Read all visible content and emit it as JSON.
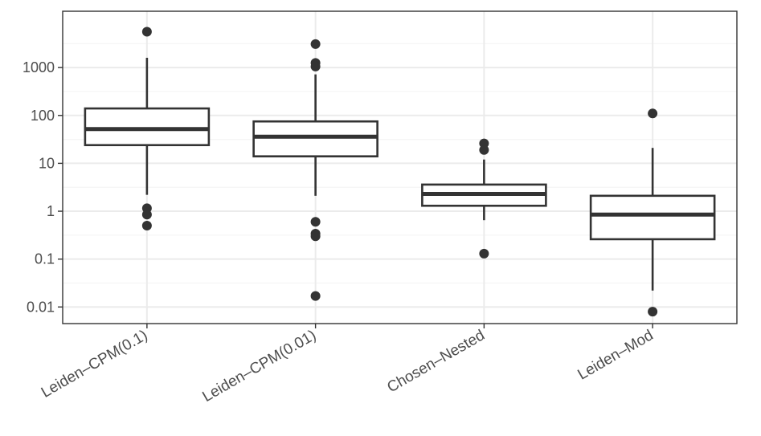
{
  "chart_data": {
    "type": "box",
    "y_scale": "log10",
    "ylim": [
      0.0045,
      15000
    ],
    "y_ticks": [
      {
        "value": 0.01,
        "label": "0.01"
      },
      {
        "value": 0.1,
        "label": "0.1"
      },
      {
        "value": 1,
        "label": "1"
      },
      {
        "value": 10,
        "label": "10"
      },
      {
        "value": 100,
        "label": "100"
      },
      {
        "value": 1000,
        "label": "1000"
      }
    ],
    "grid": true,
    "x_label_rotation_deg": 30,
    "categories": [
      "Leiden–CPM(0.1)",
      "Leiden–CPM(0.01)",
      "Chosen–Nested",
      "Leiden–Mod"
    ],
    "boxes": [
      {
        "category": "Leiden–CPM(0.1)",
        "whisker_low": 2.2,
        "q1": 24,
        "median": 52,
        "q3": 140,
        "whisker_high": 1600,
        "outliers": [
          5600,
          1.15,
          0.85,
          0.5
        ]
      },
      {
        "category": "Leiden–CPM(0.01)",
        "whisker_low": 2.1,
        "q1": 14,
        "median": 36,
        "q3": 75,
        "whisker_high": 720,
        "outliers": [
          3100,
          1250,
          1050,
          0.6,
          0.34,
          0.3,
          0.017
        ]
      },
      {
        "category": "Chosen–Nested",
        "whisker_low": 0.65,
        "q1": 1.3,
        "median": 2.3,
        "q3": 3.6,
        "whisker_high": 12,
        "outliers": [
          26,
          19,
          0.13
        ]
      },
      {
        "category": "Leiden–Mod",
        "whisker_low": 0.022,
        "q1": 0.26,
        "median": 0.85,
        "q3": 2.1,
        "whisker_high": 21,
        "outliers": [
          110,
          0.008
        ]
      }
    ],
    "colors": {
      "box_line": "#333333",
      "point": "#333333",
      "grid_major": "#ebebeb",
      "grid_minor": "#f5f5f5",
      "panel_border": "#333333",
      "tick_text": "#4d4d4d"
    }
  }
}
